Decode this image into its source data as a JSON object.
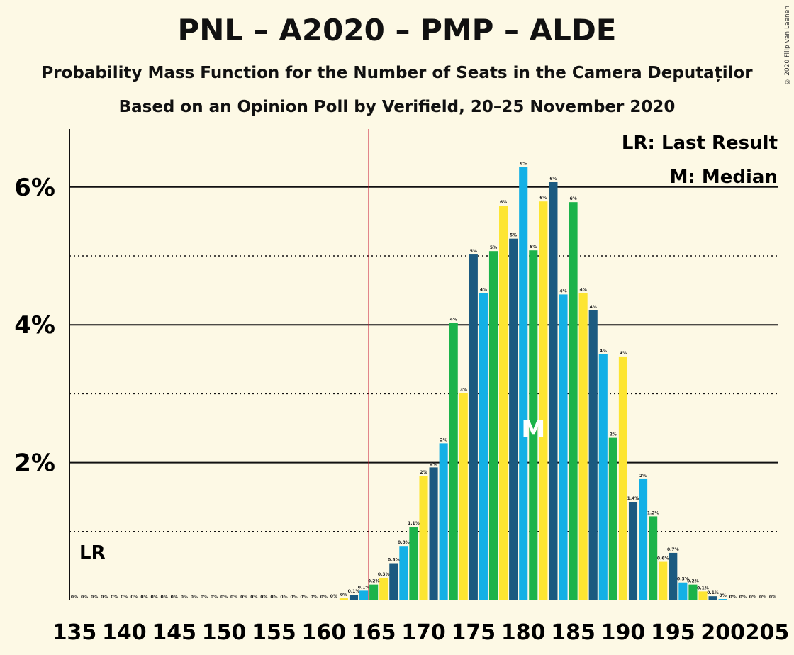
{
  "title": "PNL – A2020 – PMP – ALDE",
  "subtitle1": "Probability Mass Function for the Number of Seats in the Camera Deputaților",
  "subtitle2": "Based on an Opinion Poll by Verifield, 20–25 November 2020",
  "copyright": "© 2020 Filip van Laenen",
  "legend": {
    "lr": "LR: Last Result",
    "median": "M: Median"
  },
  "lr_label": "LR",
  "median_label": "M",
  "colors": [
    "#1b5a80",
    "#13b0e6",
    "#1cb34a",
    "#fde531"
  ],
  "chart_data": {
    "type": "bar",
    "xlabel": "",
    "ylabel": "",
    "x_range": [
      135,
      205
    ],
    "ylim": [
      0,
      6.85
    ],
    "y_ticks": [
      2,
      4,
      6
    ],
    "y_tick_labels": [
      "2%",
      "4%",
      "6%"
    ],
    "dotted_gridlines": [
      1,
      3,
      5
    ],
    "x_ticks": [
      135,
      140,
      145,
      150,
      155,
      160,
      165,
      170,
      175,
      180,
      185,
      190,
      195,
      200,
      205
    ],
    "last_result": 165,
    "median": 181,
    "seats": [
      135,
      136,
      137,
      138,
      139,
      140,
      141,
      142,
      143,
      144,
      145,
      146,
      147,
      148,
      149,
      150,
      151,
      152,
      153,
      154,
      155,
      156,
      157,
      158,
      159,
      160,
      161,
      162,
      163,
      164,
      165,
      166,
      167,
      168,
      169,
      170,
      171,
      172,
      173,
      174,
      175,
      176,
      177,
      178,
      179,
      180,
      181,
      182,
      183,
      184,
      185,
      186,
      187,
      188,
      189,
      190,
      191,
      192,
      193,
      194,
      195,
      196,
      197,
      198,
      199,
      200,
      201,
      202,
      203,
      204,
      205
    ],
    "values": [
      0,
      0,
      0,
      0,
      0,
      0,
      0,
      0,
      0,
      0,
      0,
      0,
      0,
      0,
      0,
      0,
      0,
      0,
      0,
      0,
      0,
      0,
      0,
      0,
      0,
      0,
      0.01,
      0.03,
      0.08,
      0.14,
      0.23,
      0.33,
      0.54,
      0.79,
      1.07,
      1.81,
      1.93,
      2.28,
      4.03,
      3.01,
      5.02,
      4.46,
      5.07,
      5.73,
      5.25,
      6.29,
      5.08,
      5.79,
      6.07,
      4.44,
      5.78,
      4.46,
      4.21,
      3.57,
      2.36,
      3.54,
      1.43,
      1.76,
      1.22,
      0.56,
      0.69,
      0.26,
      0.23,
      0.13,
      0.06,
      0.02,
      0,
      0,
      0,
      0,
      0
    ],
    "value_labels": [
      "0%",
      "0%",
      "0%",
      "0%",
      "0%",
      "0%",
      "0%",
      "0%",
      "0%",
      "0%",
      "0%",
      "0%",
      "0%",
      "0%",
      "0%",
      "0%",
      "0%",
      "0%",
      "0%",
      "0%",
      "0%",
      "0%",
      "0%",
      "0%",
      "0%",
      "0%",
      "0%",
      "0%",
      "0.1%",
      "0.1%",
      "0.2%",
      "0.3%",
      "0.5%",
      "0.8%",
      "1.1%",
      "2%",
      "2%",
      "2%",
      "4%",
      "3%",
      "5%",
      "4%",
      "5%",
      "6%",
      "5%",
      "6%",
      "5%",
      "6%",
      "6%",
      "4%",
      "6%",
      "4%",
      "4%",
      "4%",
      "2%",
      "4%",
      "1.4%",
      "2%",
      "1.2%",
      "0.6%",
      "0.7%",
      "0.3%",
      "0.2%",
      "0.1%",
      "0.1%",
      "0%",
      "0%",
      "0%",
      "0%",
      "0%",
      "0%"
    ]
  }
}
